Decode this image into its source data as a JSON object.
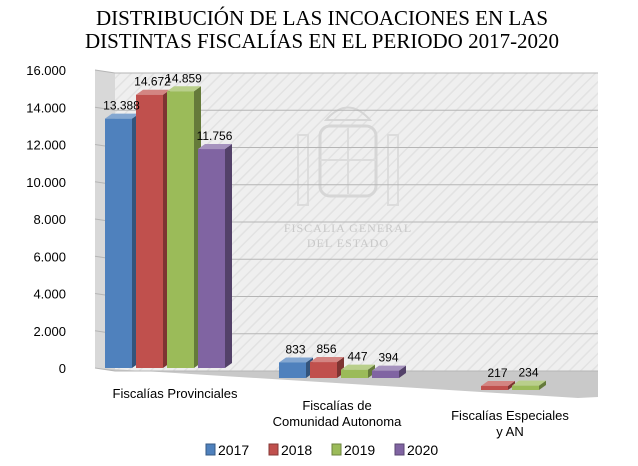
{
  "chart_data": {
    "type": "bar",
    "title": [
      "DISTRIBUCIÓN DE LAS INCOACIONES EN LAS",
      "DISTINTAS FISCALÍAS EN EL PERIODO 2017-2020"
    ],
    "categories": [
      [
        "Fiscalías Provinciales"
      ],
      [
        "Fiscalías de",
        "Comunidad Autonoma"
      ],
      [
        "Fiscalías Especiales",
        "y AN"
      ]
    ],
    "series": [
      {
        "name": "2017",
        "color": "#4f81bd",
        "values": [
          13388,
          833,
          null
        ],
        "labels": [
          "13.388",
          "833",
          ""
        ]
      },
      {
        "name": "2018",
        "color": "#c0504d",
        "values": [
          14672,
          856,
          217
        ],
        "labels": [
          "14.672",
          "856",
          "217"
        ]
      },
      {
        "name": "2019",
        "color": "#9bbb59",
        "values": [
          14859,
          447,
          234
        ],
        "labels": [
          "14.859",
          "447",
          "234"
        ]
      },
      {
        "name": "2020",
        "color": "#8064a2",
        "values": [
          11756,
          394,
          null
        ],
        "labels": [
          "11.756",
          "394",
          ""
        ]
      }
    ],
    "yticks": [
      0,
      2000,
      4000,
      6000,
      8000,
      10000,
      12000,
      14000,
      16000
    ],
    "ytick_labels": [
      "0",
      "2.000",
      "4.000",
      "6.000",
      "8.000",
      "10.000",
      "12.000",
      "14.000",
      "16.000"
    ],
    "ylim": [
      0,
      16000
    ],
    "grid": true,
    "legend_position": "bottom",
    "style": "3d",
    "watermark": [
      "FISCALIA GENERAL",
      "DEL ESTADO"
    ]
  }
}
